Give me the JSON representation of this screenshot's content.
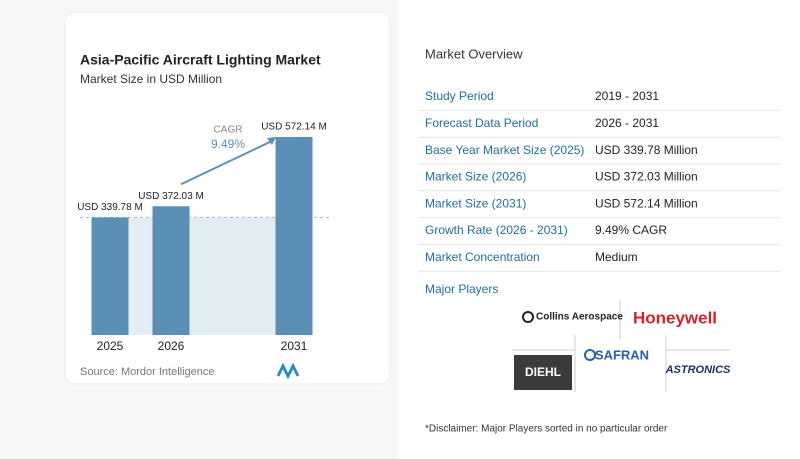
{
  "chart_data": {
    "type": "bar",
    "title": "Asia-Pacific Aircraft Lighting Market",
    "subtitle": "Market Size in USD Million",
    "categories": [
      "2025",
      "2026",
      "2031"
    ],
    "values": [
      339.78,
      372.03,
      572.14
    ],
    "value_labels": [
      "USD 339.78 M",
      "USD 372.03 M",
      "USD 572.14 M"
    ],
    "color": "#5b8fb6",
    "annotation": {
      "label": "CAGR",
      "value": "9.49%"
    },
    "source": "Source: Mordor Intelligence"
  },
  "overview": {
    "title": "Market Overview",
    "rows": [
      [
        "Study Period",
        "2019 - 2031"
      ],
      [
        "Forecast Data Period",
        "2026 - 2031"
      ],
      [
        "Base Year Market Size (2025)",
        "USD 339.78 Million"
      ],
      [
        "Market Size (2026)",
        "USD 372.03 Million"
      ],
      [
        "Market Size (2031)",
        "USD 572.14 Million"
      ],
      [
        "Growth Rate (2026 - 2031)",
        "9.49% CAGR"
      ],
      [
        "Market Concentration",
        "Medium"
      ]
    ],
    "players_title": "Major Players",
    "players": [
      "Collins Aerospace",
      "Honeywell",
      "DIEHL",
      "SAFRAN",
      "ASTRONICS"
    ],
    "disclaimer": "*Disclaimer: Major Players sorted in no particular order"
  }
}
